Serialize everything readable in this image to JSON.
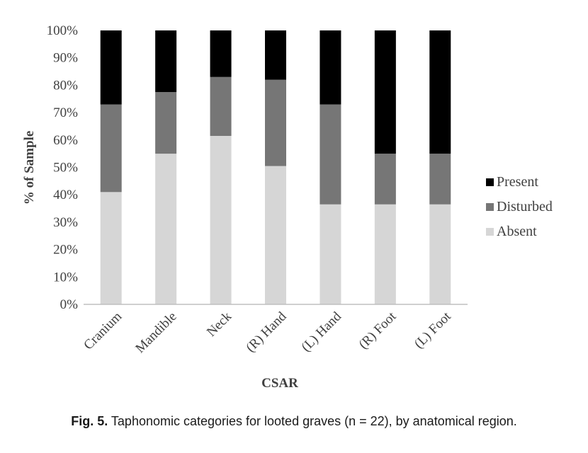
{
  "chart_data": {
    "type": "bar",
    "stacked": true,
    "percent": true,
    "categories": [
      "Cranium",
      "Mandible",
      "Neck",
      "(R) Hand",
      "(L) Hand",
      "(R) Foot",
      "(L) Foot"
    ],
    "series": [
      {
        "name": "Absent",
        "color": "#d6d6d6",
        "values": [
          41,
          55,
          61.5,
          50.5,
          36.5,
          36.5,
          36.5
        ]
      },
      {
        "name": "Disturbed",
        "color": "#767676",
        "values": [
          32,
          22.5,
          21.5,
          31.5,
          36.5,
          18.5,
          18.5
        ]
      },
      {
        "name": "Present",
        "color": "#000000",
        "values": [
          27,
          22.5,
          17,
          18,
          27,
          45,
          45
        ]
      }
    ],
    "legend_order": [
      "Present",
      "Disturbed",
      "Absent"
    ],
    "legend_position": "right",
    "yticks": [
      "0%",
      "10%",
      "20%",
      "30%",
      "40%",
      "50%",
      "60%",
      "70%",
      "80%",
      "90%",
      "100%"
    ],
    "ylim": [
      0,
      100
    ],
    "xlabel": "CSAR",
    "ylabel": "% of Sample",
    "grid": false
  },
  "caption": {
    "label": "Fig. 5.",
    "text": " Taphonomic categories for looted graves (n = 22), by anatomical region."
  }
}
